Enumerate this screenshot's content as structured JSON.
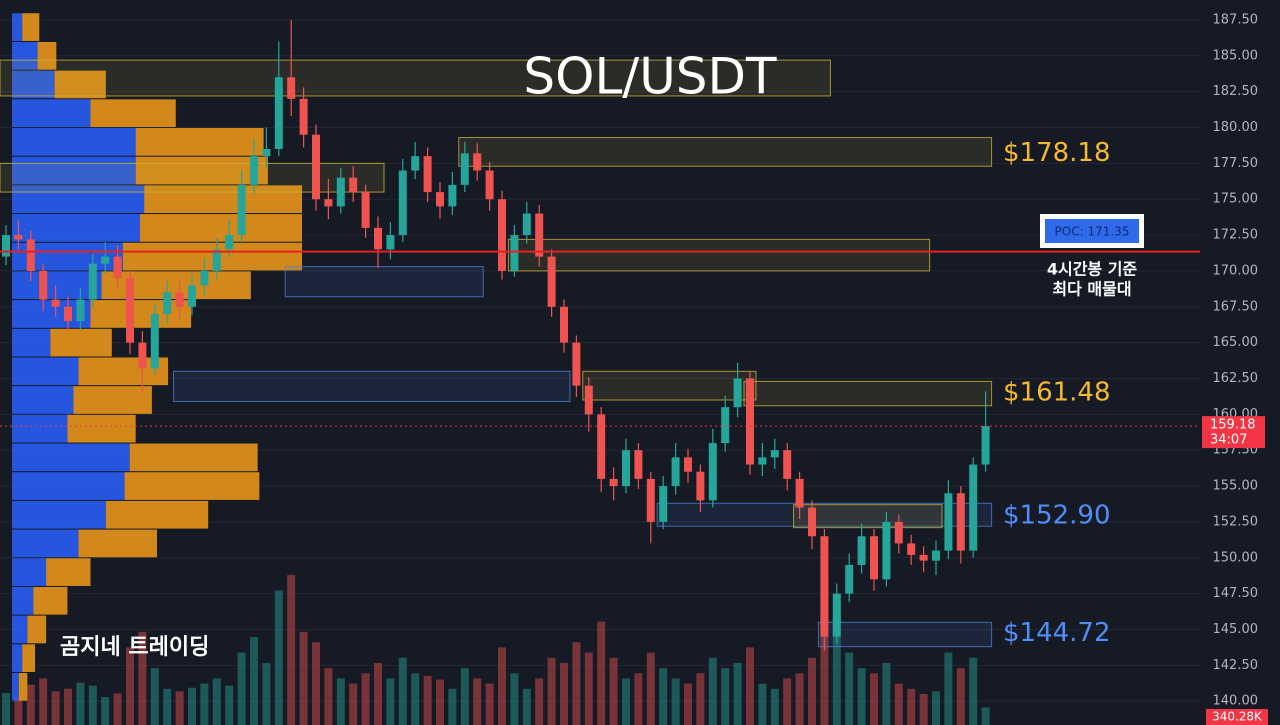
{
  "chart_data": {
    "type": "candlestick",
    "title": "SOL/USDT",
    "watermark": "곰지네 트레이딩",
    "ylim": [
      138.34,
      188.89
    ],
    "yticks": [
      {
        "value": 140,
        "label": "140.00"
      },
      {
        "value": 142.5,
        "label": "142.50"
      },
      {
        "value": 145,
        "label": "145.00"
      },
      {
        "value": 147.5,
        "label": "147.50"
      },
      {
        "value": 150,
        "label": "150.00"
      },
      {
        "value": 152.5,
        "label": "152.50"
      },
      {
        "value": 155,
        "label": "155.00"
      },
      {
        "value": 157.5,
        "label": "157.50"
      },
      {
        "value": 160,
        "label": "160.00"
      },
      {
        "value": 162.5,
        "label": "162.50"
      },
      {
        "value": 165,
        "label": "165.00"
      },
      {
        "value": 167.5,
        "label": "167.50"
      },
      {
        "value": 170,
        "label": "170.00"
      },
      {
        "value": 172.5,
        "label": "172.50"
      },
      {
        "value": 175,
        "label": "175.00"
      },
      {
        "value": 177.5,
        "label": "177.50"
      },
      {
        "value": 180,
        "label": "180.00"
      },
      {
        "value": 182.5,
        "label": "182.50"
      },
      {
        "value": 185,
        "label": "185.00"
      },
      {
        "value": 187.5,
        "label": "187.50"
      }
    ],
    "grid": true,
    "candles": {
      "up_color": "#26a69a",
      "down_color": "#ef5350",
      "open": [
        171,
        172.5,
        172.2,
        170,
        168,
        167.5,
        166.5,
        168,
        170.5,
        171,
        169.5,
        165,
        163.2,
        167,
        168.5,
        167.5,
        169,
        170,
        171.5,
        172.5,
        176,
        178,
        178.5,
        183.5,
        182,
        179.5,
        175,
        174.5,
        176.5,
        175.5,
        173,
        171.5,
        172.5,
        177,
        178,
        175.5,
        174.5,
        176,
        178.2,
        177,
        175,
        170,
        172.5,
        174,
        171,
        167.5,
        165,
        162,
        160,
        155.5,
        155,
        157.5,
        155.5,
        152.5,
        155,
        157,
        156,
        154,
        158,
        160.5,
        162.5,
        156.5,
        157,
        157.5,
        155.5,
        153.5,
        151.5,
        144.5,
        147.5,
        149.5,
        151.5,
        148.5,
        152.5,
        151,
        150.2,
        149.8,
        150.5,
        154.5,
        150.5,
        156.5
      ],
      "high": [
        173.2,
        173.5,
        172.8,
        170.5,
        169,
        168.2,
        168.8,
        171.2,
        172,
        171.8,
        170,
        165.8,
        167.8,
        169.3,
        169.4,
        169.8,
        170.9,
        172.3,
        173.6,
        177,
        179.2,
        180,
        186,
        187.5,
        182.8,
        180.2,
        176.4,
        177.2,
        177.3,
        176,
        173.8,
        173.4,
        177.8,
        179,
        178.6,
        176.2,
        176.9,
        179,
        178.9,
        177.6,
        175.6,
        173.2,
        174.8,
        174.6,
        171.5,
        168,
        165.5,
        162.6,
        160.5,
        156.3,
        158.3,
        158,
        156,
        155.7,
        158,
        157.6,
        156.5,
        159,
        161.3,
        163.6,
        163,
        158,
        158.3,
        158,
        156,
        154,
        152,
        148.2,
        150.3,
        152.4,
        152,
        153.2,
        153,
        151.6,
        150.8,
        151.2,
        155.4,
        155,
        157,
        161.6
      ],
      "low": [
        170.4,
        171.5,
        169.3,
        167.2,
        166.8,
        165.8,
        165.9,
        167.5,
        169.8,
        168.8,
        164.2,
        161.5,
        162.8,
        166.3,
        166.6,
        166.9,
        168.3,
        169.4,
        170.9,
        172,
        175.4,
        177.2,
        178,
        180.8,
        178.6,
        174.2,
        173.6,
        174,
        174.8,
        172.3,
        170.2,
        170.8,
        172,
        176.4,
        174.8,
        173.6,
        173.9,
        175.5,
        176.3,
        174.2,
        169.4,
        169.6,
        171.9,
        170.3,
        166.8,
        164.3,
        161.2,
        158.8,
        154.6,
        154,
        154.5,
        154.8,
        151,
        152,
        154.4,
        155.2,
        153.2,
        153.5,
        157.4,
        159.8,
        155.8,
        155.7,
        156.2,
        154.7,
        152.7,
        150.6,
        143.5,
        144,
        146.9,
        148.9,
        147.7,
        148,
        150.3,
        149.5,
        149,
        148.8,
        149.9,
        149.6,
        150,
        156
      ],
      "close": [
        172.5,
        172.2,
        170,
        168,
        167.5,
        166.5,
        168,
        170.5,
        171,
        169.5,
        165,
        163.2,
        167,
        168.5,
        167.5,
        169,
        170,
        171.5,
        172.5,
        176,
        178,
        178.5,
        183.5,
        182,
        179.5,
        175,
        174.5,
        176.5,
        175.5,
        173,
        171.5,
        172.5,
        177,
        178,
        175.5,
        174.5,
        176,
        178.2,
        177,
        175,
        170,
        172.5,
        174,
        171,
        167.5,
        165,
        162,
        160,
        155.5,
        155,
        157.5,
        155.5,
        152.5,
        155,
        157,
        156,
        154,
        158,
        160.5,
        162.5,
        156.5,
        157,
        157.5,
        155.5,
        153.5,
        151.5,
        144.5,
        147.5,
        149.5,
        151.5,
        148.5,
        152.5,
        151,
        150.2,
        149.8,
        150.5,
        154.5,
        150.5,
        156.5,
        159.18
      ]
    },
    "volume": {
      "values": [
        620,
        540,
        780,
        900,
        650,
        700,
        820,
        760,
        540,
        610,
        1500,
        1800,
        1100,
        700,
        650,
        720,
        800,
        900,
        760,
        1400,
        1700,
        1200,
        2600,
        2900,
        1800,
        1600,
        1100,
        900,
        800,
        1000,
        1200,
        900,
        1300,
        1000,
        950,
        880,
        700,
        1100,
        900,
        800,
        1500,
        1000,
        700,
        900,
        1300,
        1200,
        1600,
        1400,
        2000,
        1300,
        900,
        1000,
        1400,
        1100,
        900,
        800,
        1000,
        1300,
        1100,
        1200,
        1500,
        800,
        700,
        900,
        1000,
        1300,
        2900,
        2100,
        1400,
        1100,
        1000,
        1200,
        800,
        700,
        600,
        650,
        1400,
        1100,
        1300,
        340.28
      ],
      "last_label": "340.28K"
    },
    "volume_profile": {
      "buy_color": "#2962ff",
      "sell_color": "#f59c1a",
      "levels": [
        187,
        185,
        183,
        181,
        179,
        177,
        175,
        173,
        171,
        169,
        167,
        165,
        163,
        161,
        159,
        157,
        155,
        153,
        151,
        149,
        147,
        145,
        143,
        141
      ],
      "buy": [
        12,
        30,
        50,
        92,
        145,
        145,
        155,
        150,
        130,
        105,
        92,
        45,
        78,
        72,
        65,
        138,
        132,
        110,
        78,
        40,
        25,
        18,
        12,
        8
      ],
      "sell": [
        20,
        22,
        60,
        100,
        150,
        155,
        185,
        190,
        210,
        175,
        118,
        72,
        105,
        92,
        80,
        150,
        158,
        120,
        92,
        52,
        40,
        22,
        15,
        10
      ]
    },
    "zones": [
      {
        "low": 182.2,
        "high": 184.7,
        "from": 0,
        "to": 66,
        "color": "#c9b23a"
      },
      {
        "low": 175.5,
        "high": 177.5,
        "from": 0,
        "to": 30,
        "color": "#c9b23a"
      },
      {
        "low": 177.3,
        "high": 179.3,
        "from": 37,
        "to": 79,
        "color": "#c9b23a"
      },
      {
        "low": 170,
        "high": 172.2,
        "from": 41,
        "to": 74,
        "color": "#c9b23a"
      },
      {
        "low": 168.2,
        "high": 170.3,
        "from": 23,
        "to": 38,
        "color": "#4a7fd0"
      },
      {
        "low": 160.9,
        "high": 163,
        "from": 14,
        "to": 45,
        "color": "#4a7fd0"
      },
      {
        "low": 161,
        "high": 163,
        "from": 47,
        "to": 60,
        "color": "#c9b23a"
      },
      {
        "low": 160.6,
        "high": 162.3,
        "from": 60,
        "to": 79,
        "color": "#c9b23a"
      },
      {
        "low": 152.2,
        "high": 153.8,
        "from": 53,
        "to": 79,
        "color": "#4a7fd0"
      },
      {
        "low": 152.1,
        "high": 153.7,
        "from": 64,
        "to": 75,
        "color": "#c9b23a"
      },
      {
        "low": 143.8,
        "high": 145.5,
        "from": 66,
        "to": 79,
        "color": "#4a7fd0"
      }
    ],
    "price_labels": [
      {
        "value": 178.18,
        "label": "$178.18",
        "color": "#f5b82e"
      },
      {
        "value": 161.48,
        "label": "$161.48",
        "color": "#f5b82e"
      },
      {
        "value": 152.9,
        "label": "$152.90",
        "color": "#4f8ef7"
      },
      {
        "value": 144.72,
        "label": "$144.72",
        "color": "#4f8ef7"
      }
    ],
    "poc": {
      "value": 171.35,
      "label": "POC: 171.35",
      "color": "#e52222"
    },
    "annotation": [
      "4시간봉 기준",
      "최다 매물대"
    ],
    "last_price": {
      "value": 159.18,
      "label": "159.18",
      "countdown": "34:07",
      "color": "#f23645"
    }
  }
}
